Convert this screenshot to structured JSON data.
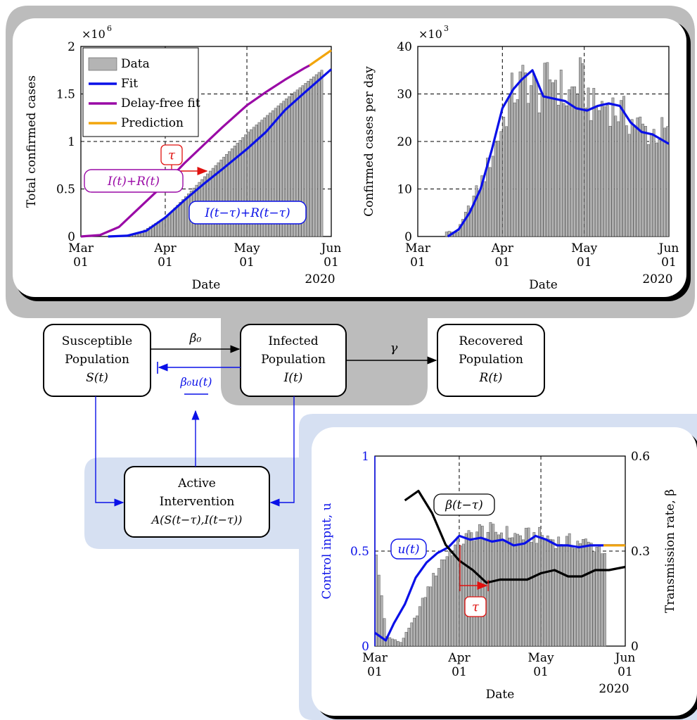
{
  "panels": {
    "total": {
      "ylabel": "Total confirmed cases",
      "xlabel": "Date",
      "year": "2020",
      "yexp_base": "×10",
      "yexp_pow": "6",
      "legend": [
        {
          "label": "Data",
          "kind": "bar"
        },
        {
          "label": "Fit",
          "kind": "line",
          "color": "#0a10e8"
        },
        {
          "label": "Delay-free fit",
          "kind": "line",
          "color": "#9a0aa6"
        },
        {
          "label": "Prediction",
          "kind": "line",
          "color": "#f2a50c"
        }
      ],
      "annotation_tau": "τ",
      "annotation_IR": "I(t)+R(t)",
      "annotation_IR_delay": "I(t−τ)+R(t−τ)"
    },
    "daily": {
      "ylabel": "Confirmed cases per day",
      "xlabel": "Date",
      "year": "2020",
      "yexp_base": "×10",
      "yexp_pow": "3"
    },
    "control": {
      "ylabel_left": "Control input, u",
      "ylabel_right": "Transmission rate, β",
      "xlabel": "Date",
      "year": "2020",
      "annotation_u": "u(t)",
      "annotation_beta": "β(t−τ)",
      "annotation_tau": "τ"
    }
  },
  "diagram": {
    "susceptible": [
      "Susceptible",
      "Population",
      "S(t)"
    ],
    "infected": [
      "Infected",
      "Population",
      "I(t)"
    ],
    "recovered": [
      "Recovered",
      "Population",
      "R(t)"
    ],
    "intervention": [
      "Active",
      "Intervention",
      "A(S(t−τ),I(t−τ))"
    ],
    "beta0": "β₀",
    "beta0u": "β₀u(t)",
    "gamma": "γ"
  },
  "colors": {
    "fit": "#0a10e8",
    "delayfree": "#9a0aa6",
    "prediction": "#f2a50c",
    "tau": "#e0110f",
    "bars": "#b4b4b4",
    "shade_gray": "#bcbcbc",
    "shade_blue": "#d6e0f2"
  },
  "chart_data": [
    {
      "type": "bar",
      "title": "",
      "xlabel": "Date",
      "ylabel": "Total confirmed cases",
      "x_ticks": [
        "Mar 01",
        "Apr 01",
        "May 01",
        "Jun 01"
      ],
      "x_range": [
        "2020-03-01",
        "2020-06-01"
      ],
      "ylim": [
        0,
        2000000
      ],
      "y_ticks": [
        "0",
        "0.5",
        "1",
        "1.5",
        "2"
      ],
      "grid": "dashed",
      "legend_position": "top-left",
      "series": [
        {
          "name": "Data",
          "type": "bar",
          "x": [
            "2020-03-01",
            "2020-03-15",
            "2020-03-22",
            "2020-04-01",
            "2020-04-15",
            "2020-05-01",
            "2020-05-15",
            "2020-05-28"
          ],
          "values": [
            0,
            3500,
            33000,
            210000,
            630000,
            1100000,
            1450000,
            1750000
          ]
        },
        {
          "name": "Fit",
          "type": "line",
          "x": [
            "2020-03-11",
            "2020-03-18",
            "2020-03-25",
            "2020-04-01",
            "2020-04-08",
            "2020-04-15",
            "2020-04-22",
            "2020-05-01",
            "2020-05-08",
            "2020-05-15",
            "2020-05-22",
            "2020-06-01"
          ],
          "values": [
            0,
            8000,
            60000,
            200000,
            380000,
            550000,
            710000,
            920000,
            1100000,
            1330000,
            1510000,
            1760000
          ]
        },
        {
          "name": "Delay-free fit",
          "type": "line",
          "x": [
            "2020-03-01",
            "2020-03-08",
            "2020-03-15",
            "2020-03-22",
            "2020-04-01",
            "2020-04-08",
            "2020-04-15",
            "2020-04-22",
            "2020-05-01",
            "2020-05-08",
            "2020-05-15",
            "2020-05-22",
            "2020-05-24"
          ],
          "values": [
            0,
            15000,
            100000,
            290000,
            560000,
            770000,
            960000,
            1150000,
            1380000,
            1520000,
            1650000,
            1770000,
            1800000
          ]
        },
        {
          "name": "Prediction",
          "type": "line",
          "x": [
            "2020-05-24",
            "2020-06-01"
          ],
          "values": [
            1800000,
            1960000
          ]
        }
      ]
    },
    {
      "type": "bar",
      "title": "",
      "xlabel": "Date",
      "ylabel": "Confirmed cases per day",
      "x_ticks": [
        "Mar 01",
        "Apr 01",
        "May 01",
        "Jun 01"
      ],
      "x_range": [
        "2020-03-01",
        "2020-06-01"
      ],
      "ylim": [
        0,
        40000
      ],
      "y_ticks": [
        "0",
        "10",
        "20",
        "30",
        "40"
      ],
      "grid": "dashed",
      "series": [
        {
          "name": "Data",
          "type": "bar",
          "x": [
            "2020-03-15",
            "2020-03-20",
            "2020-03-25",
            "2020-03-30",
            "2020-04-04",
            "2020-04-09",
            "2020-04-14",
            "2020-04-19",
            "2020-04-24",
            "2020-04-29",
            "2020-05-04",
            "2020-05-09",
            "2020-05-14",
            "2020-05-19",
            "2020-05-24",
            "2020-05-29"
          ],
          "values": [
            1000,
            7000,
            13000,
            21000,
            30000,
            33000,
            30000,
            34000,
            29000,
            33000,
            27000,
            28000,
            26000,
            24000,
            22000,
            22000
          ]
        },
        {
          "name": "Fit",
          "type": "line",
          "x": [
            "2020-03-12",
            "2020-03-16",
            "2020-03-20",
            "2020-03-24",
            "2020-03-28",
            "2020-04-01",
            "2020-04-05",
            "2020-04-08",
            "2020-04-12",
            "2020-04-16",
            "2020-04-20",
            "2020-04-24",
            "2020-04-28",
            "2020-05-02",
            "2020-05-06",
            "2020-05-10",
            "2020-05-14",
            "2020-05-18",
            "2020-05-22",
            "2020-05-26",
            "2020-06-01"
          ],
          "values": [
            0,
            1500,
            5000,
            10000,
            18000,
            27000,
            31000,
            33000,
            35000,
            29500,
            29000,
            28500,
            27000,
            26500,
            27500,
            28000,
            27500,
            24000,
            22000,
            21500,
            19500
          ]
        }
      ]
    },
    {
      "type": "bar",
      "title": "",
      "xlabel": "Date",
      "ylabel": "Control input, u",
      "ylabel_right": "Transmission rate, β",
      "x_ticks": [
        "Mar 01",
        "Apr 01",
        "May 01",
        "Jun 01"
      ],
      "x_range": [
        "2020-03-01",
        "2020-06-01"
      ],
      "ylim": [
        0,
        1
      ],
      "ylim_right": [
        0,
        0.6
      ],
      "y_ticks": [
        "0",
        "0.5",
        "1"
      ],
      "y_ticks_right": [
        "0",
        "0.3",
        "0.6"
      ],
      "grid": "dashed",
      "series": [
        {
          "name": "Data",
          "type": "bar",
          "x": [
            "2020-03-01",
            "2020-03-05",
            "2020-03-10",
            "2020-03-15",
            "2020-03-20",
            "2020-03-25",
            "2020-04-01",
            "2020-04-08",
            "2020-04-15",
            "2020-04-22",
            "2020-05-01",
            "2020-05-08",
            "2020-05-15",
            "2020-05-22",
            "2020-05-25"
          ],
          "values": [
            0.48,
            0.05,
            0.02,
            0.14,
            0.3,
            0.45,
            0.55,
            0.61,
            0.6,
            0.58,
            0.58,
            0.55,
            0.55,
            0.52,
            0.5
          ]
        },
        {
          "name": "u(t)",
          "type": "line",
          "x": [
            "2020-03-01",
            "2020-03-05",
            "2020-03-08",
            "2020-03-12",
            "2020-03-16",
            "2020-03-20",
            "2020-03-24",
            "2020-03-28",
            "2020-04-01",
            "2020-04-05",
            "2020-04-09",
            "2020-04-13",
            "2020-04-17",
            "2020-04-21",
            "2020-04-25",
            "2020-04-29",
            "2020-05-03",
            "2020-05-07",
            "2020-05-11",
            "2020-05-15",
            "2020-05-19",
            "2020-05-24",
            "2020-06-01"
          ],
          "values": [
            0.07,
            0.03,
            0.12,
            0.22,
            0.36,
            0.44,
            0.49,
            0.52,
            0.58,
            0.56,
            0.57,
            0.55,
            0.56,
            0.53,
            0.54,
            0.58,
            0.56,
            0.53,
            0.53,
            0.52,
            0.53,
            0.53,
            0.53
          ]
        },
        {
          "name": "Prediction",
          "type": "line",
          "x": [
            "2020-05-24",
            "2020-06-01"
          ],
          "values": [
            0.53,
            0.53
          ]
        },
        {
          "name": "β(t−τ)",
          "type": "line",
          "axis": "right",
          "x": [
            "2020-03-12",
            "2020-03-17",
            "2020-03-22",
            "2020-03-27",
            "2020-04-01",
            "2020-04-06",
            "2020-04-11",
            "2020-04-16",
            "2020-04-21",
            "2020-04-26",
            "2020-05-01",
            "2020-05-06",
            "2020-05-11",
            "2020-05-16",
            "2020-05-21",
            "2020-05-26",
            "2020-06-01"
          ],
          "values": [
            0.46,
            0.49,
            0.42,
            0.32,
            0.27,
            0.24,
            0.2,
            0.21,
            0.21,
            0.21,
            0.23,
            0.24,
            0.22,
            0.22,
            0.24,
            0.24,
            0.25
          ]
        }
      ]
    }
  ]
}
